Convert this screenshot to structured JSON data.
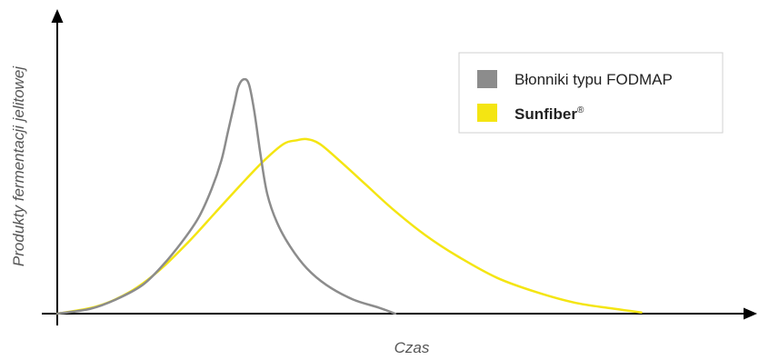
{
  "chart_data": {
    "type": "line",
    "title": "",
    "xlabel": "Czas",
    "ylabel": "Produkty fermentacji jelitowej",
    "xlim": [
      0,
      100
    ],
    "ylim": [
      0,
      100
    ],
    "grid": false,
    "tick_labels_shown": false,
    "legend_position": "top-right",
    "series": [
      {
        "name": "Błonniki typu FODMAP",
        "color": "#8c8c8c",
        "points": [
          [
            0,
            0
          ],
          [
            5,
            2
          ],
          [
            9,
            6
          ],
          [
            13,
            12
          ],
          [
            16,
            20
          ],
          [
            19,
            30
          ],
          [
            21.5,
            40
          ],
          [
            23.5,
            52
          ],
          [
            25,
            64
          ],
          [
            26,
            76
          ],
          [
            27,
            88
          ],
          [
            27.6,
            95
          ],
          [
            28.4,
            98
          ],
          [
            29.2,
            96
          ],
          [
            30,
            85
          ],
          [
            31,
            66
          ],
          [
            32,
            50
          ],
          [
            33.5,
            38
          ],
          [
            35.5,
            28
          ],
          [
            38,
            19
          ],
          [
            41,
            12
          ],
          [
            45,
            6
          ],
          [
            49,
            2.5
          ],
          [
            51.5,
            0
          ]
        ]
      },
      {
        "name": "Sunfiber",
        "name_mark": "®",
        "color": "#f4e512",
        "points": [
          [
            0,
            0
          ],
          [
            6,
            3
          ],
          [
            11,
            9
          ],
          [
            15.5,
            18
          ],
          [
            20,
            30
          ],
          [
            24,
            42
          ],
          [
            28,
            54
          ],
          [
            31.5,
            64
          ],
          [
            34.5,
            71
          ],
          [
            36.5,
            72.5
          ],
          [
            38,
            73
          ],
          [
            40,
            71
          ],
          [
            43,
            64
          ],
          [
            47,
            54
          ],
          [
            51,
            44
          ],
          [
            56,
            33
          ],
          [
            61,
            24
          ],
          [
            67,
            15
          ],
          [
            73,
            9
          ],
          [
            79,
            4.5
          ],
          [
            85,
            2
          ],
          [
            89,
            0.5
          ]
        ]
      }
    ]
  }
}
